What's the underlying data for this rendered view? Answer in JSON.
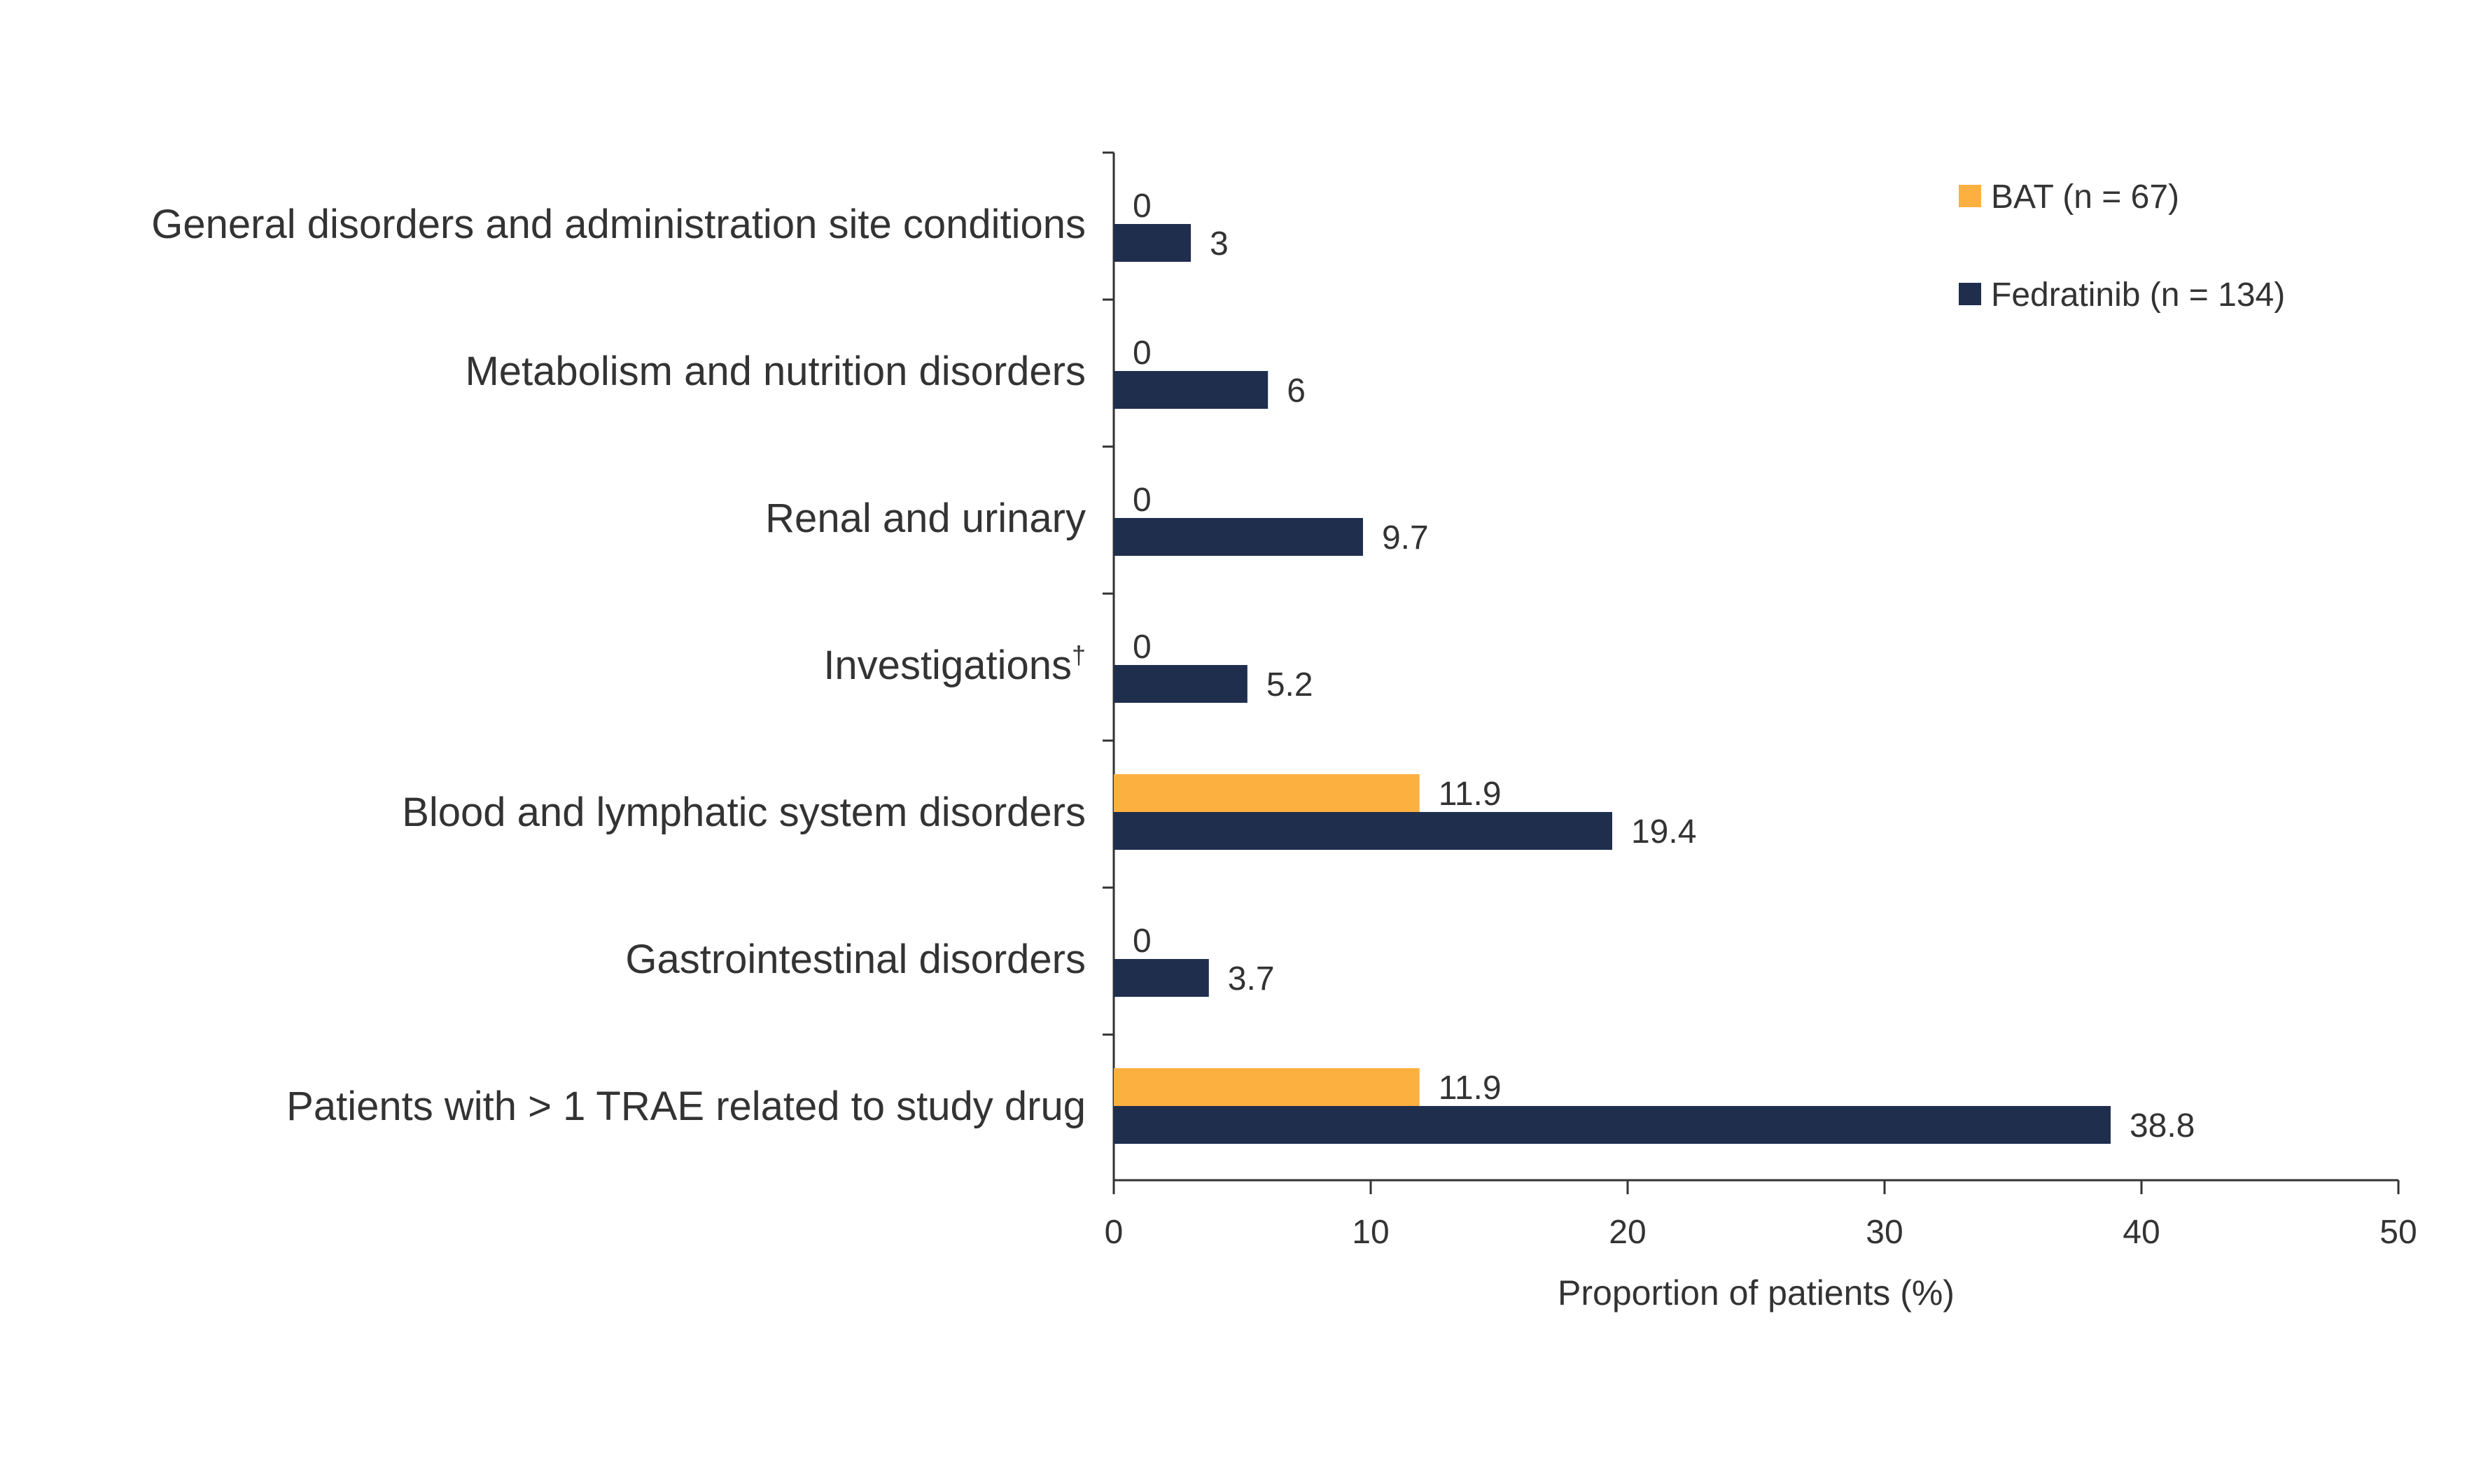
{
  "chart_data": {
    "type": "bar",
    "orientation": "horizontal",
    "categories": [
      "General disorders and administration site conditions",
      "Metabolism and nutrition disorders",
      "Renal and urinary",
      "Investigations",
      "Blood and lymphatic system disorders",
      "Gastrointestinal disorders",
      "Patients with > 1 TRAE related to study drug"
    ],
    "category_superscripts": [
      "",
      "",
      "",
      "†",
      "",
      "",
      ""
    ],
    "series": [
      {
        "name": "BAT (n = 67)",
        "color": "#FBB040",
        "values": [
          0,
          0,
          0,
          0,
          11.9,
          0,
          11.9
        ],
        "value_labels": [
          "0",
          "0",
          "0",
          "0",
          "11.9",
          "0",
          "11.9"
        ]
      },
      {
        "name": "Fedratinib (n = 134)",
        "color": "#1F2E4D",
        "values": [
          3,
          6,
          9.7,
          5.2,
          19.4,
          3.7,
          38.8
        ],
        "value_labels": [
          "3",
          "6",
          "9.7",
          "5.2",
          "19.4",
          "3.7",
          "38.8"
        ]
      }
    ],
    "xlabel": "Proportion of patients (%)",
    "ylabel": "",
    "xlim": [
      0,
      50
    ],
    "xticks": [
      0,
      10,
      20,
      30,
      40,
      50
    ],
    "xtick_labels": [
      "0",
      "10",
      "20",
      "30",
      "40",
      "50"
    ],
    "grid": false,
    "legend_position": "top-right"
  }
}
